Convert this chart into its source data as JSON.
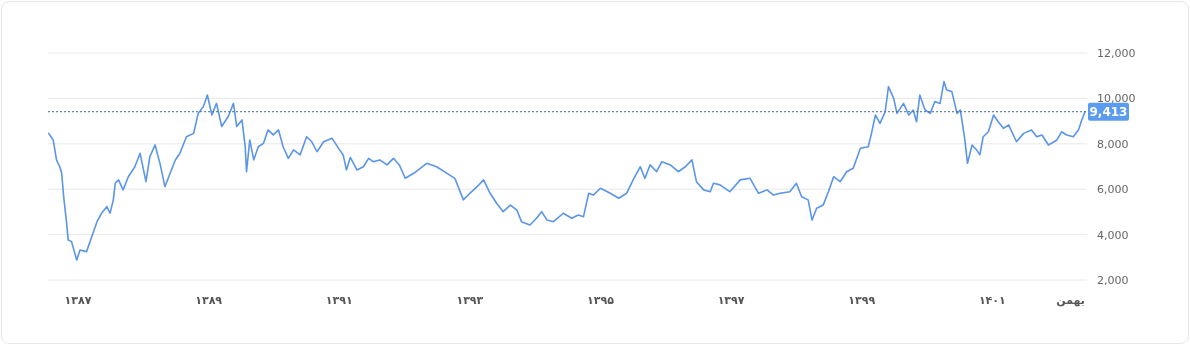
{
  "chart_data": {
    "type": "line",
    "x": [
      1386.55,
      1386.62,
      1386.67,
      1386.72,
      1386.75,
      1386.78,
      1386.82,
      1386.85,
      1386.9,
      1386.98,
      1387.03,
      1387.13,
      1387.21,
      1387.29,
      1387.36,
      1387.44,
      1387.49,
      1387.54,
      1387.57,
      1387.62,
      1387.69,
      1387.77,
      1387.87,
      1387.95,
      1388.04,
      1388.1,
      1388.18,
      1388.26,
      1388.33,
      1388.41,
      1388.49,
      1388.56,
      1388.66,
      1388.77,
      1388.84,
      1388.92,
      1388.98,
      1389.05,
      1389.12,
      1389.2,
      1389.3,
      1389.38,
      1389.43,
      1389.51,
      1389.56,
      1389.58,
      1389.63,
      1389.69,
      1389.76,
      1389.84,
      1389.91,
      1389.99,
      1390.07,
      1390.14,
      1390.22,
      1390.3,
      1390.4,
      1390.5,
      1390.58,
      1390.66,
      1390.76,
      1390.89,
      1390.99,
      1391.06,
      1391.11,
      1391.17,
      1391.27,
      1391.37,
      1391.45,
      1391.52,
      1391.62,
      1391.73,
      1391.83,
      1391.92,
      1392.01,
      1392.14,
      1392.34,
      1392.49,
      1392.65,
      1392.77,
      1392.9,
      1393.0,
      1393.11,
      1393.21,
      1393.31,
      1393.41,
      1393.51,
      1393.62,
      1393.72,
      1393.79,
      1393.92,
      1394.02,
      1394.1,
      1394.18,
      1394.28,
      1394.43,
      1394.56,
      1394.66,
      1394.74,
      1394.82,
      1394.89,
      1395.0,
      1395.15,
      1395.28,
      1395.4,
      1395.5,
      1395.61,
      1395.68,
      1395.76,
      1395.86,
      1395.94,
      1396.07,
      1396.19,
      1396.3,
      1396.4,
      1396.47,
      1396.58,
      1396.68,
      1396.73,
      1396.83,
      1396.98,
      1397.14,
      1397.29,
      1397.42,
      1397.55,
      1397.65,
      1397.75,
      1397.9,
      1398.0,
      1398.08,
      1398.18,
      1398.24,
      1398.31,
      1398.41,
      1398.49,
      1398.57,
      1398.67,
      1398.77,
      1398.87,
      1398.98,
      1399.1,
      1399.15,
      1399.21,
      1399.28,
      1399.36,
      1399.41,
      1399.49,
      1399.54,
      1399.64,
      1399.72,
      1399.79,
      1399.84,
      1399.89,
      1399.97,
      1400.05,
      1400.12,
      1400.2,
      1400.26,
      1400.3,
      1400.38,
      1400.46,
      1400.51,
      1400.58,
      1400.62,
      1400.69,
      1400.76,
      1400.81,
      1400.86,
      1400.94,
      1401.02,
      1401.09,
      1401.17,
      1401.25,
      1401.37,
      1401.48,
      1401.6,
      1401.68,
      1401.76,
      1401.86,
      1401.99,
      1402.06,
      1402.14,
      1402.24,
      1402.32,
      1402.37,
      1402.42
    ],
    "series": [
      {
        "color": "#5b95e8",
        "values": [
          8460,
          8170,
          7290,
          6990,
          6700,
          5670,
          4640,
          3760,
          3690,
          2880,
          3320,
          3250,
          3910,
          4570,
          4940,
          5230,
          4940,
          5530,
          6260,
          6410,
          5970,
          6550,
          6990,
          7580,
          6330,
          7430,
          7950,
          7070,
          6110,
          6700,
          7290,
          7580,
          8310,
          8460,
          9340,
          9640,
          10150,
          9270,
          9780,
          8760,
          9200,
          9780,
          8760,
          9050,
          7870,
          6770,
          8170,
          7290,
          7870,
          8020,
          8610,
          8390,
          8610,
          7870,
          7360,
          7730,
          7510,
          8310,
          8090,
          7650,
          8090,
          8240,
          7800,
          7510,
          6850,
          7400,
          6850,
          6990,
          7360,
          7210,
          7290,
          7070,
          7360,
          7070,
          6480,
          6700,
          7140,
          6990,
          6700,
          6480,
          5530,
          5820,
          6110,
          6410,
          5820,
          5380,
          5010,
          5300,
          5080,
          4570,
          4420,
          4720,
          5010,
          4640,
          4570,
          4940,
          4720,
          4860,
          4790,
          5820,
          5740,
          6040,
          5820,
          5600,
          5820,
          6410,
          6990,
          6480,
          7070,
          6770,
          7210,
          7070,
          6770,
          6990,
          7290,
          6330,
          5970,
          5890,
          6260,
          6190,
          5890,
          6410,
          6480,
          5820,
          5970,
          5740,
          5820,
          5890,
          6260,
          5670,
          5530,
          4640,
          5160,
          5300,
          5890,
          6550,
          6330,
          6770,
          6920,
          7800,
          7870,
          8460,
          9270,
          8900,
          9420,
          10520,
          10000,
          9340,
          9780,
          9270,
          9490,
          8970,
          10150,
          9490,
          9340,
          9860,
          9780,
          10740,
          10370,
          10300,
          9340,
          9490,
          8170,
          7140,
          7950,
          7730,
          7510,
          8310,
          8530,
          9270,
          8970,
          8680,
          8830,
          8090,
          8460,
          8610,
          8310,
          8390,
          7950,
          8170,
          8530,
          8390,
          8310,
          8610,
          9050,
          9413
        ]
      }
    ],
    "xlim": [
      1386.54,
      1402.45
    ],
    "ylim": [
      2000,
      12000
    ],
    "xticks": [
      {
        "value": 1387,
        "label": "۱۳۸۷"
      },
      {
        "value": 1389,
        "label": "۱۳۸۹"
      },
      {
        "value": 1391,
        "label": "۱۳۹۱"
      },
      {
        "value": 1393,
        "label": "۱۳۹۳"
      },
      {
        "value": 1395,
        "label": "۱۳۹۵"
      },
      {
        "value": 1397,
        "label": "۱۳۹۷"
      },
      {
        "value": 1399,
        "label": "۱۳۹۹"
      },
      {
        "value": 1401,
        "label": "۱۴۰۱"
      },
      {
        "value": 1402.2,
        "label": "بهمن"
      }
    ],
    "yticks": [
      {
        "value": 2000,
        "label": "2,000"
      },
      {
        "value": 4000,
        "label": "4,000"
      },
      {
        "value": 6000,
        "label": "6,000"
      },
      {
        "value": 8000,
        "label": "8,000"
      },
      {
        "value": 10000,
        "label": "10,000"
      },
      {
        "value": 12000,
        "label": "12,000"
      }
    ],
    "grid": "y",
    "ref_lines": [
      {
        "axis": "y",
        "value": 9413,
        "label": "9,413",
        "color": "#3d6e9c",
        "line_style": "dotted"
      }
    ]
  }
}
